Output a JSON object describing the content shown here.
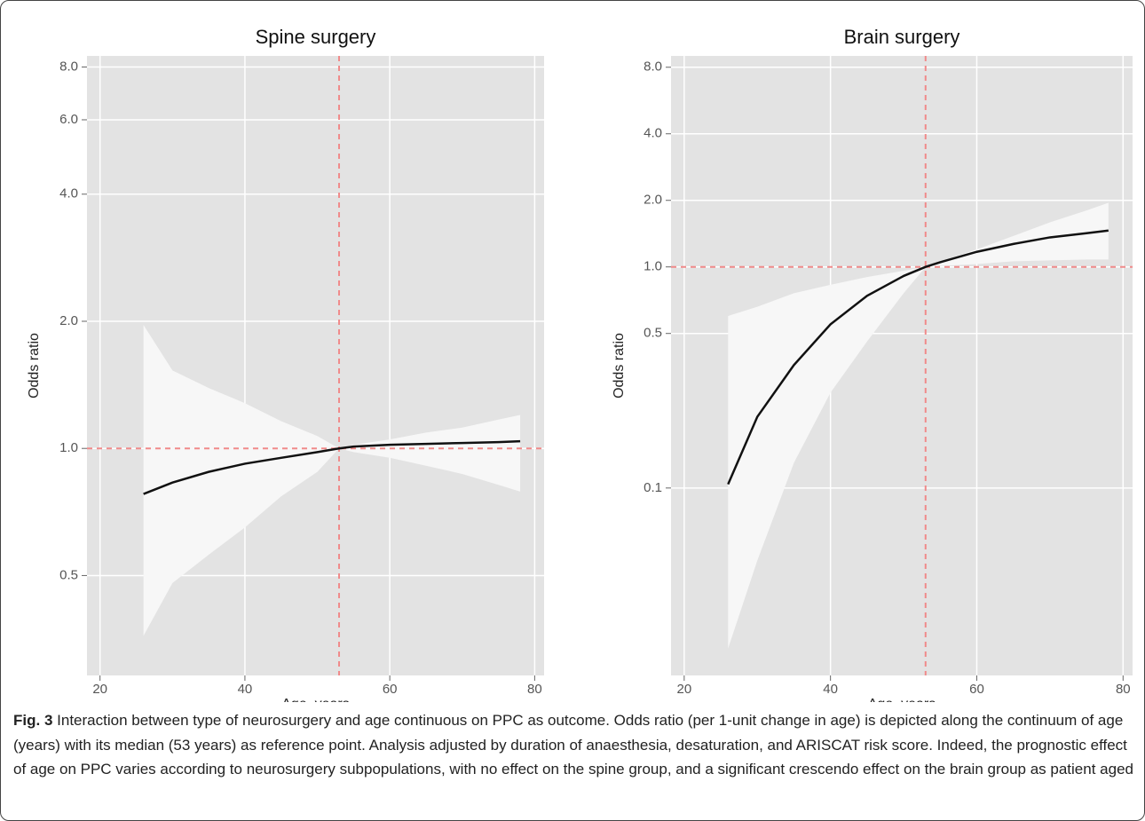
{
  "chart_data": [
    {
      "type": "line",
      "title": "Spine surgery",
      "xlabel": "Age, years",
      "ylabel": "Odds ratio",
      "x": [
        26,
        30,
        35,
        40,
        45,
        50,
        53,
        55,
        60,
        65,
        70,
        75,
        78
      ],
      "values": [
        0.78,
        0.83,
        0.88,
        0.92,
        0.95,
        0.98,
        1.0,
        1.01,
        1.02,
        1.025,
        1.03,
        1.035,
        1.04
      ],
      "upper": [
        1.96,
        1.53,
        1.39,
        1.28,
        1.16,
        1.07,
        1.0,
        1.02,
        1.05,
        1.09,
        1.12,
        1.17,
        1.2
      ],
      "lower": [
        0.36,
        0.48,
        0.56,
        0.65,
        0.77,
        0.88,
        1.0,
        0.98,
        0.95,
        0.91,
        0.87,
        0.82,
        0.79
      ],
      "xlim": [
        18.2,
        81.3
      ],
      "xticks": [
        20,
        40,
        60,
        80
      ],
      "ylim": [
        0.29,
        8.5
      ],
      "y_scale": "log",
      "yticks": [
        {
          "value": 0.5,
          "label": "0.5"
        },
        {
          "value": 1,
          "label": "1.0"
        },
        {
          "value": 2,
          "label": "2.0"
        },
        {
          "value": 4,
          "label": "4.0"
        },
        {
          "value": 6,
          "label": "6.0"
        },
        {
          "value": 8,
          "label": "8.0"
        }
      ],
      "reference_lines": {
        "x": 53,
        "y": 1
      },
      "grid": true,
      "color": "#111111",
      "band_color": "#f7f7f7",
      "panel_color": "#e3e3e3",
      "reference_color": "#f08a8a"
    },
    {
      "type": "line",
      "title": "Brain surgery",
      "xlabel": "Age, years",
      "ylabel": "Odds ratio",
      "x": [
        26,
        30,
        35,
        40,
        45,
        50,
        53,
        55,
        60,
        65,
        70,
        75,
        78
      ],
      "values": [
        0.104,
        0.21,
        0.36,
        0.55,
        0.74,
        0.91,
        1.0,
        1.05,
        1.17,
        1.27,
        1.36,
        1.42,
        1.46
      ],
      "upper": [
        0.6,
        0.66,
        0.76,
        0.83,
        0.9,
        0.96,
        1.0,
        1.06,
        1.2,
        1.38,
        1.59,
        1.8,
        1.95
      ],
      "lower": [
        0.0188,
        0.047,
        0.13,
        0.27,
        0.46,
        0.76,
        1.0,
        1.01,
        1.03,
        1.06,
        1.07,
        1.08,
        1.08
      ],
      "xlim": [
        18.2,
        81.3
      ],
      "xticks": [
        20,
        40,
        60,
        80
      ],
      "ylim": [
        0.0142,
        9.0
      ],
      "y_scale": "log",
      "yticks": [
        0.1,
        0.5,
        {
          "value": 1,
          "label": "1.0"
        },
        {
          "value": 2,
          "label": "2.0"
        },
        {
          "value": 4,
          "label": "4.0"
        },
        {
          "value": 8,
          "label": "8.0"
        }
      ],
      "reference_lines": {
        "x": 53,
        "y": 1
      },
      "grid": true,
      "color": "#111111",
      "band_color": "#f7f7f7",
      "panel_color": "#e3e3e3",
      "reference_color": "#f08a8a"
    }
  ],
  "caption": {
    "label": "Fig. 3",
    "text": "Interaction between type of neurosurgery and age continuous on PPC as outcome. Odds ratio (per 1-unit change in age) is depicted along the continuum of age (years) with its median (53 years) as reference point. Analysis adjusted by duration of anaesthesia, desaturation, and ARISCAT risk score. Indeed, the prognostic effect of age on PPC varies according to neurosurgery subpopulations, with no effect on the spine group, and a significant crescendo effect on the brain group as patient aged"
  }
}
